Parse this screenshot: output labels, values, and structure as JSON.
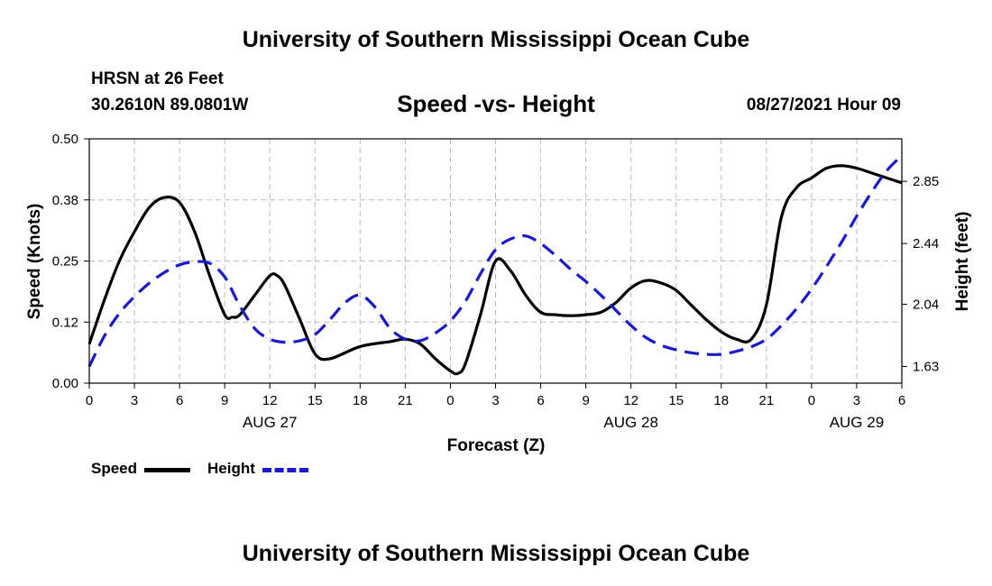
{
  "header": {
    "title": "University of Southern Mississippi Ocean Cube",
    "station": "HRSN at 26 Feet",
    "coords": "30.2610N  89.0801W",
    "subtitle": "Speed -vs- Height",
    "datetime": "08/27/2021 Hour 09"
  },
  "footer": {
    "title": "University of Southern Mississippi Ocean Cube"
  },
  "legend": {
    "speed_label": "Speed",
    "height_label": "Height"
  },
  "colors": {
    "speed": "#000000",
    "height": "#1a1acc",
    "grid": "#bbbbbb"
  },
  "chart_data": {
    "type": "line",
    "title": "Speed -vs- Height",
    "xlabel": "Forecast (Z)",
    "ylabel": "Speed (Knots)",
    "y2label": "Height (feet)",
    "x_unit": "forecast hour since 08/27 00Z",
    "xlim": [
      0,
      54
    ],
    "x_ticks": [
      0,
      3,
      6,
      9,
      12,
      15,
      18,
      21,
      24,
      27,
      30,
      33,
      36,
      39,
      42,
      45,
      48,
      51,
      54
    ],
    "x_tick_labels": [
      "0",
      "3",
      "6",
      "9",
      "12",
      "15",
      "18",
      "21",
      "0",
      "3",
      "6",
      "9",
      "12",
      "15",
      "18",
      "21",
      "0",
      "3",
      "6"
    ],
    "date_labels": [
      {
        "x": 12,
        "label": "AUG 27"
      },
      {
        "x": 36,
        "label": "AUG 28"
      },
      {
        "x": 51,
        "label": "AUG 29"
      }
    ],
    "ylim": [
      0,
      0.5
    ],
    "y_ticks": [
      0.0,
      0.125,
      0.25,
      0.375,
      0.5
    ],
    "y_tick_labels": [
      "0.00",
      "0.12",
      "0.25",
      "0.38",
      "0.50"
    ],
    "y2lim": [
      1.52,
      3.13
    ],
    "y2_ticks": [
      1.63,
      2.04,
      2.44,
      2.85
    ],
    "y2_tick_labels": [
      "1.63",
      "2.04",
      "2.44",
      "2.85"
    ],
    "grid": true,
    "legend_position": "bottom-left",
    "series": [
      {
        "name": "Speed",
        "axis": "left",
        "style": "solid",
        "x": [
          0,
          1,
          2,
          3,
          4,
          5,
          6,
          7,
          8,
          9,
          9.5,
          10,
          11,
          12,
          12.5,
          13,
          14,
          15,
          16,
          18,
          20,
          21,
          22,
          23,
          24,
          24.5,
          25,
          26,
          27,
          28,
          29,
          30,
          31,
          32,
          33,
          34,
          35,
          36,
          37,
          38,
          39,
          40,
          41,
          42,
          43,
          44,
          45,
          46,
          47,
          48,
          49,
          50,
          51,
          52,
          53,
          54
        ],
        "values": [
          0.08,
          0.17,
          0.25,
          0.31,
          0.36,
          0.38,
          0.37,
          0.31,
          0.22,
          0.14,
          0.135,
          0.14,
          0.18,
          0.22,
          0.22,
          0.2,
          0.13,
          0.06,
          0.05,
          0.075,
          0.085,
          0.09,
          0.08,
          0.05,
          0.025,
          0.02,
          0.04,
          0.14,
          0.25,
          0.23,
          0.18,
          0.145,
          0.14,
          0.138,
          0.14,
          0.145,
          0.165,
          0.195,
          0.21,
          0.205,
          0.19,
          0.16,
          0.13,
          0.105,
          0.09,
          0.09,
          0.16,
          0.34,
          0.4,
          0.42,
          0.44,
          0.445,
          0.44,
          0.43,
          0.42,
          0.41
        ]
      },
      {
        "name": "Height",
        "axis": "right",
        "style": "dashed",
        "x": [
          0,
          1,
          2,
          3,
          4,
          5,
          6,
          7,
          8,
          9,
          10,
          11,
          12,
          13,
          14,
          15,
          16,
          17,
          18,
          19,
          20,
          21,
          22,
          23,
          24,
          25,
          26,
          27,
          28,
          29,
          30,
          31,
          32,
          33,
          34,
          35,
          36,
          37,
          38,
          39,
          40,
          41,
          42,
          43,
          44,
          45,
          46,
          47,
          48,
          49,
          50,
          51,
          52,
          53,
          54
        ],
        "values": [
          1.63,
          1.83,
          1.98,
          2.09,
          2.18,
          2.25,
          2.3,
          2.32,
          2.31,
          2.22,
          2.03,
          1.88,
          1.81,
          1.79,
          1.8,
          1.84,
          1.94,
          2.05,
          2.1,
          2.02,
          1.88,
          1.81,
          1.8,
          1.85,
          1.93,
          2.06,
          2.24,
          2.4,
          2.47,
          2.49,
          2.44,
          2.36,
          2.27,
          2.19,
          2.1,
          2.0,
          1.9,
          1.82,
          1.77,
          1.74,
          1.72,
          1.71,
          1.71,
          1.73,
          1.76,
          1.81,
          1.9,
          2.01,
          2.14,
          2.29,
          2.45,
          2.62,
          2.78,
          2.92,
          3.02
        ]
      }
    ]
  }
}
